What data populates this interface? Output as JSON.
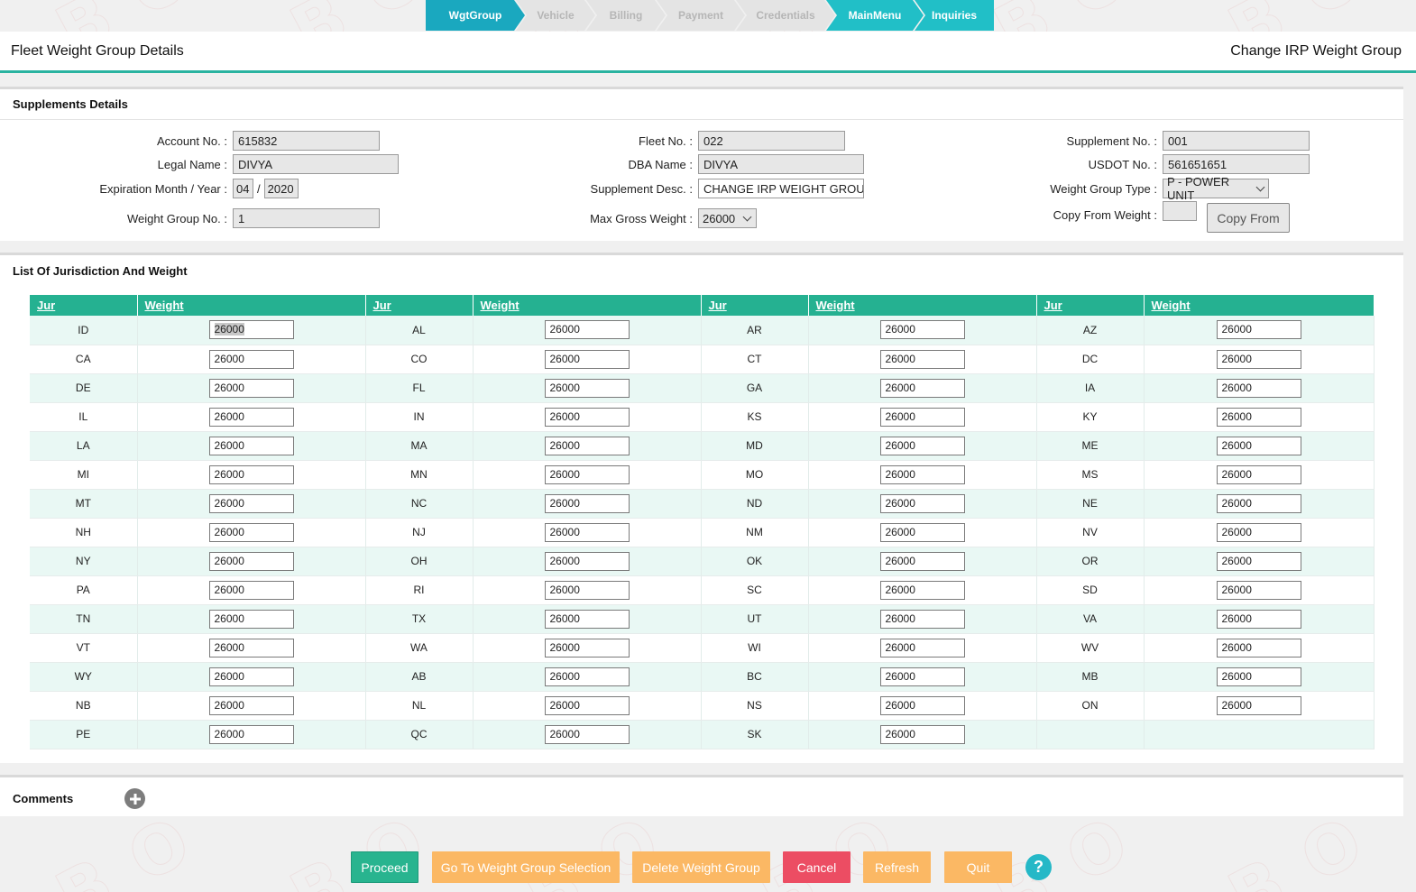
{
  "wizard": {
    "steps": [
      {
        "label": "WgtGroup"
      },
      {
        "label": "Vehicle"
      },
      {
        "label": "Billing"
      },
      {
        "label": "Payment"
      },
      {
        "label": "Credentials"
      },
      {
        "label": "MainMenu"
      },
      {
        "label": "Inquiries"
      }
    ]
  },
  "header": {
    "title": "Fleet Weight Group Details",
    "subtitle": "Change IRP Weight Group"
  },
  "supplements": {
    "heading": "Supplements Details",
    "account_label": "Account No. :",
    "account_value": "615832",
    "legal_label": "Legal Name :",
    "legal_value": "DIVYA",
    "exp_label": "Expiration Month / Year :",
    "exp_month": "04",
    "exp_sep": "/",
    "exp_year": "2020",
    "wg_no_label": "Weight Group No. :",
    "wg_no_value": "1",
    "fleet_label": "Fleet No. :",
    "fleet_value": "022",
    "dba_label": "DBA Name :",
    "dba_value": "DIVYA",
    "desc_label": "Supplement Desc. :",
    "desc_value": "CHANGE IRP WEIGHT GROUP",
    "max_label": "Max Gross Weight :",
    "max_value": "26000",
    "supno_label": "Supplement No. :",
    "supno_value": "001",
    "usdot_label": "USDOT No. :",
    "usdot_value": "561651651",
    "wgtype_label": "Weight Group Type :",
    "wgtype_value": "P - POWER UNIT",
    "copy_label": "Copy From Weight :",
    "copy_value": "",
    "copy_button": "Copy From"
  },
  "jurisdiction": {
    "heading": "List Of Jurisdiction And Weight",
    "col_jur": "Jur",
    "col_weight": "Weight",
    "rows": [
      [
        [
          "ID",
          "26000"
        ],
        [
          "AL",
          "26000"
        ],
        [
          "AR",
          "26000"
        ],
        [
          "AZ",
          "26000"
        ]
      ],
      [
        [
          "CA",
          "26000"
        ],
        [
          "CO",
          "26000"
        ],
        [
          "CT",
          "26000"
        ],
        [
          "DC",
          "26000"
        ]
      ],
      [
        [
          "DE",
          "26000"
        ],
        [
          "FL",
          "26000"
        ],
        [
          "GA",
          "26000"
        ],
        [
          "IA",
          "26000"
        ]
      ],
      [
        [
          "IL",
          "26000"
        ],
        [
          "IN",
          "26000"
        ],
        [
          "KS",
          "26000"
        ],
        [
          "KY",
          "26000"
        ]
      ],
      [
        [
          "LA",
          "26000"
        ],
        [
          "MA",
          "26000"
        ],
        [
          "MD",
          "26000"
        ],
        [
          "ME",
          "26000"
        ]
      ],
      [
        [
          "MI",
          "26000"
        ],
        [
          "MN",
          "26000"
        ],
        [
          "MO",
          "26000"
        ],
        [
          "MS",
          "26000"
        ]
      ],
      [
        [
          "MT",
          "26000"
        ],
        [
          "NC",
          "26000"
        ],
        [
          "ND",
          "26000"
        ],
        [
          "NE",
          "26000"
        ]
      ],
      [
        [
          "NH",
          "26000"
        ],
        [
          "NJ",
          "26000"
        ],
        [
          "NM",
          "26000"
        ],
        [
          "NV",
          "26000"
        ]
      ],
      [
        [
          "NY",
          "26000"
        ],
        [
          "OH",
          "26000"
        ],
        [
          "OK",
          "26000"
        ],
        [
          "OR",
          "26000"
        ]
      ],
      [
        [
          "PA",
          "26000"
        ],
        [
          "RI",
          "26000"
        ],
        [
          "SC",
          "26000"
        ],
        [
          "SD",
          "26000"
        ]
      ],
      [
        [
          "TN",
          "26000"
        ],
        [
          "TX",
          "26000"
        ],
        [
          "UT",
          "26000"
        ],
        [
          "VA",
          "26000"
        ]
      ],
      [
        [
          "VT",
          "26000"
        ],
        [
          "WA",
          "26000"
        ],
        [
          "WI",
          "26000"
        ],
        [
          "WV",
          "26000"
        ]
      ],
      [
        [
          "WY",
          "26000"
        ],
        [
          "AB",
          "26000"
        ],
        [
          "BC",
          "26000"
        ],
        [
          "MB",
          "26000"
        ]
      ],
      [
        [
          "NB",
          "26000"
        ],
        [
          "NL",
          "26000"
        ],
        [
          "NS",
          "26000"
        ],
        [
          "ON",
          "26000"
        ]
      ],
      [
        [
          "PE",
          "26000"
        ],
        [
          "QC",
          "26000"
        ],
        [
          "SK",
          "26000"
        ],
        null
      ]
    ]
  },
  "comments": {
    "heading": "Comments",
    "add_icon": "plus-circle-icon"
  },
  "footer": {
    "proceed": "Proceed",
    "goto": "Go To Weight Group Selection",
    "delete": "Delete Weight Group",
    "cancel": "Cancel",
    "refresh": "Refresh",
    "quit": "Quit",
    "help": "?"
  },
  "colors": {
    "accent": "#25b191",
    "wizard_active": "#1aa8bf",
    "orange": "#fbb864",
    "red": "#ec4d63"
  }
}
